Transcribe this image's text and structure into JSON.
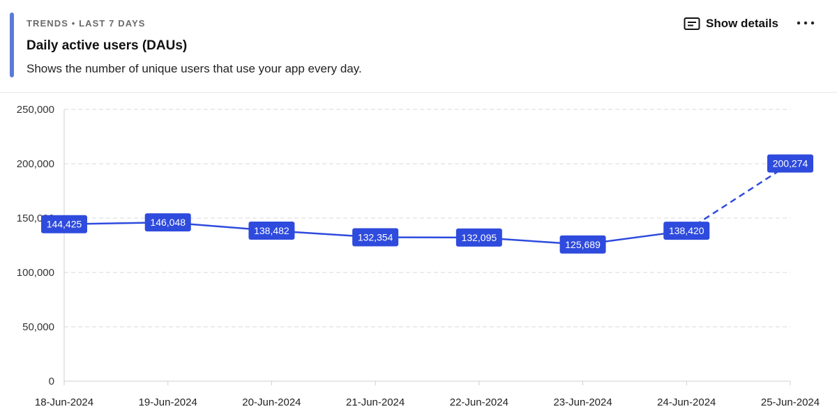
{
  "header": {
    "eyebrow": "TRENDS • LAST 7 DAYS",
    "title": "Daily active users (DAUs)",
    "subtitle": "Shows the number of unique users that use your app every day.",
    "details_label": "Show details",
    "details_icon": "details-icon",
    "more_icon": "more-horizontal-icon"
  },
  "colors": {
    "accent": "#5a7bd9",
    "series": "#2e4bdd",
    "grid": "#d9d9d9"
  },
  "chart_data": {
    "type": "line",
    "categories": [
      "18-Jun-2024",
      "19-Jun-2024",
      "20-Jun-2024",
      "21-Jun-2024",
      "22-Jun-2024",
      "23-Jun-2024",
      "24-Jun-2024",
      "25-Jun-2024"
    ],
    "values": [
      144425,
      146048,
      138482,
      132354,
      132095,
      125689,
      138420,
      200274
    ],
    "value_labels": [
      "144,425",
      "146,048",
      "138,482",
      "132,354",
      "132,095",
      "125,689",
      "138,420",
      "200,274"
    ],
    "yticks": [
      "0",
      "50,000",
      "100,000",
      "150,000",
      "200,000",
      "250,000"
    ],
    "ytick_values": [
      0,
      50000,
      100000,
      150000,
      200000,
      250000
    ],
    "ylim": [
      0,
      250000
    ],
    "dashed_last_segment": true,
    "grid": true
  }
}
